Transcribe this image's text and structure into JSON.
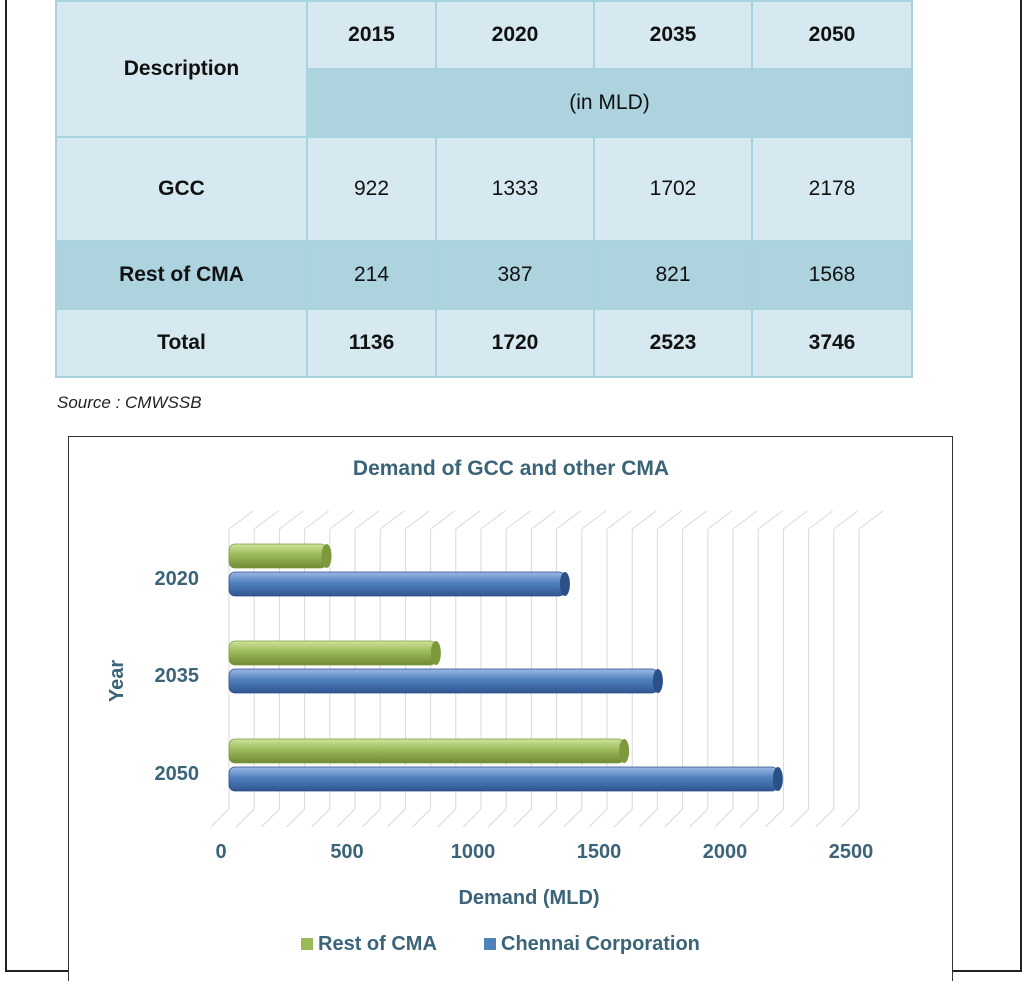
{
  "table": {
    "description_header": "Description",
    "years": [
      "2015",
      "2020",
      "2035",
      "2050"
    ],
    "unit_note": "(in MLD)",
    "rows": [
      {
        "label": "GCC",
        "values": [
          "922",
          "1333",
          "1702",
          "2178"
        ]
      },
      {
        "label": "Rest of CMA",
        "values": [
          "214",
          "387",
          "821",
          "1568"
        ]
      },
      {
        "label": "Total",
        "values": [
          "1136",
          "1720",
          "2523",
          "3746"
        ]
      }
    ]
  },
  "source": "Source : CMWSSB",
  "chart_data": {
    "type": "bar",
    "orientation": "horizontal",
    "title": "Demand of GCC and other CMA",
    "xlabel": "Demand (MLD)",
    "ylabel": "Year",
    "categories": [
      "2020",
      "2035",
      "2050"
    ],
    "xlim": [
      0,
      2500
    ],
    "xticks": [
      "0",
      "500",
      "1000",
      "1500",
      "2000",
      "2500"
    ],
    "series": [
      {
        "name": "Rest of CMA",
        "values": [
          387,
          821,
          1568
        ],
        "color": "#9bbb59"
      },
      {
        "name": "Chennai Corporation",
        "values": [
          1333,
          1702,
          2178
        ],
        "color": "#4f81bd"
      }
    ],
    "legend": "bottom",
    "grid": true,
    "style": "3d-cylinder"
  }
}
